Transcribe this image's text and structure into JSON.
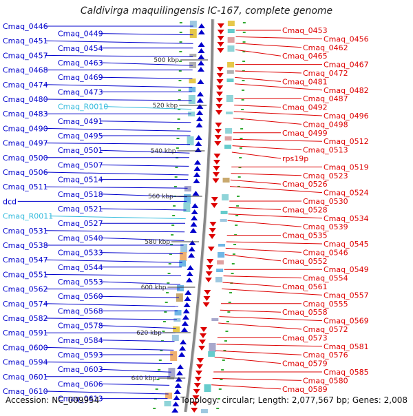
{
  "title": "Caldivirga maquilingensis IC-167, complete genome",
  "accession": "Accession: NC_009954",
  "topology": "Topology: circular; Length: 2,077,567 bp; Genes: 2,008",
  "scale_labels": [
    "500 kbp",
    "520 kbp",
    "540 kbp",
    "560 kbp",
    "580 kbp",
    "600 kbp",
    "620 kbp",
    "640 kbp"
  ],
  "colors": {
    "left_genes": "#0000cc",
    "right_genes": "#dd0000",
    "rna": "#33bbdd",
    "backbone": "#888888"
  },
  "left_labels": [
    "Cmaq_0446",
    "Cmaq_0449",
    "Cmaq_0451",
    "Cmaq_0454",
    "Cmaq_0457",
    "Cmaq_0463",
    "Cmaq_0468",
    "Cmaq_0469",
    "Cmaq_0474",
    "Cmaq_0473",
    "Cmaq_0480",
    "Cmaq_R0010",
    "Cmaq_0483",
    "Cmaq_0491",
    "Cmaq_0490",
    "Cmaq_0495",
    "Cmaq_0497",
    "Cmaq_0501",
    "Cmaq_0500",
    "Cmaq_0507",
    "Cmaq_0506",
    "Cmaq_0514",
    "Cmaq_0511",
    "Cmaq_0518",
    "dcd",
    "Cmaq_0521",
    "Cmaq_R0011",
    "Cmaq_0527",
    "Cmaq_0531",
    "Cmaq_0540",
    "Cmaq_0538",
    "Cmaq_0533",
    "Cmaq_0547",
    "Cmaq_0544",
    "Cmaq_0551",
    "Cmaq_0553",
    "Cmaq_0562",
    "Cmaq_0560",
    "Cmaq_0574",
    "Cmaq_0568",
    "Cmaq_0582",
    "Cmaq_0578",
    "Cmaq_0591",
    "Cmaq_0584",
    "Cmaq_0600",
    "Cmaq_0593",
    "Cmaq_0594",
    "Cmaq_0603",
    "Cmaq_0601",
    "Cmaq_0606",
    "Cmaq_0610",
    "Cmaq_0613"
  ],
  "right_labels": [
    "Cmaq_0453",
    "Cmaq_0456",
    "Cmaq_0462",
    "Cmaq_0465",
    "Cmaq_0467",
    "Cmaq_0472",
    "Cmaq_0481",
    "Cmaq_0482",
    "Cmaq_0487",
    "Cmaq_0492",
    "Cmaq_0496",
    "Cmaq_0498",
    "Cmaq_0499",
    "Cmaq_0512",
    "Cmaq_0513",
    "rps19p",
    "Cmaq_0519",
    "Cmaq_0523",
    "Cmaq_0526",
    "Cmaq_0524",
    "Cmaq_0530",
    "Cmaq_0528",
    "Cmaq_0534",
    "Cmaq_0539",
    "Cmaq_0535",
    "Cmaq_0545",
    "Cmaq_0546",
    "Cmaq_0552",
    "Cmaq_0549",
    "Cmaq_0554",
    "Cmaq_0561",
    "Cmaq_0557",
    "Cmaq_0555",
    "Cmaq_0558",
    "Cmaq_0569",
    "Cmaq_0572",
    "Cmaq_0573",
    "Cmaq_0581",
    "Cmaq_0576",
    "Cmaq_0579",
    "Cmaq_0585",
    "Cmaq_0580",
    "Cmaq_0589"
  ]
}
